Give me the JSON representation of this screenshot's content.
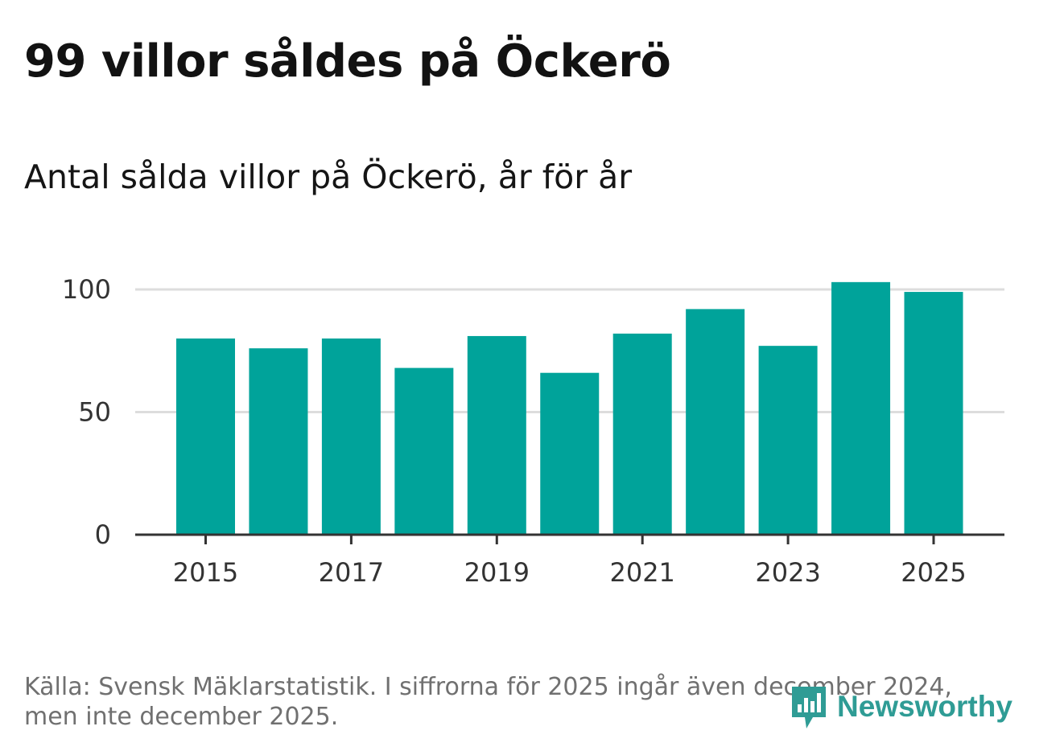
{
  "title": "99 villor såldes på Öckerö",
  "subtitle": "Antal sålda villor på Öckerö, år för år",
  "source_lines": [
    "Källa: Svensk Mäklarstatistik. I siffrorna för 2025 ingår även december 2024,",
    "men inte december 2025."
  ],
  "logo_text": "Newsworthy",
  "colors": {
    "bar": "#00a39a",
    "grid": "#dddddd",
    "axis": "#333333",
    "logo": "#2f9c95"
  },
  "chart_data": {
    "type": "bar",
    "title": "Antal sålda villor på Öckerö, år för år",
    "categories": [
      "2015",
      "2016",
      "2017",
      "2018",
      "2019",
      "2020",
      "2021",
      "2022",
      "2023",
      "2024",
      "2025"
    ],
    "values": [
      80,
      76,
      80,
      68,
      81,
      66,
      82,
      92,
      77,
      103,
      99
    ],
    "x_tick_labels": [
      "2015",
      "2017",
      "2019",
      "2021",
      "2023",
      "2025"
    ],
    "y_ticks": [
      0,
      50,
      100
    ],
    "y_tick_labels": [
      "0",
      "50",
      "100"
    ],
    "ylim": [
      0,
      103
    ],
    "xlabel": "",
    "ylabel": "",
    "grid": true
  }
}
